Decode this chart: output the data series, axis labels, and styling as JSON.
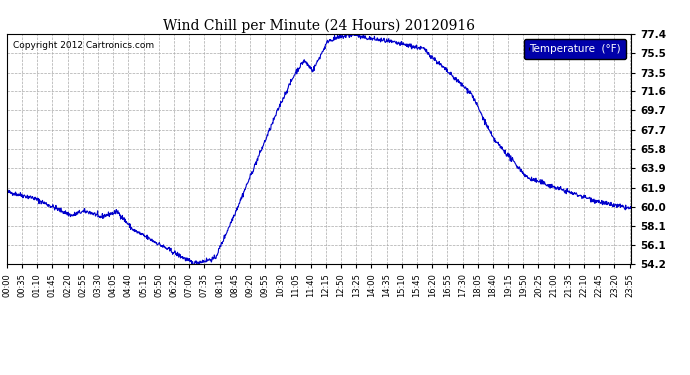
{
  "title": "Wind Chill per Minute (24 Hours) 20120916",
  "copyright": "Copyright 2012 Cartronics.com",
  "legend_label": "Temperature  (°F)",
  "line_color": "#0000CC",
  "background_color": "#FFFFFF",
  "plot_bg_color": "#FFFFFF",
  "legend_bg_color": "#0000AA",
  "legend_text_color": "#FFFFFF",
  "yticks": [
    54.2,
    56.1,
    58.1,
    60.0,
    61.9,
    63.9,
    65.8,
    67.7,
    69.7,
    71.6,
    73.5,
    75.5,
    77.4
  ],
  "ylim": [
    54.2,
    77.4
  ],
  "xtick_labels": [
    "00:00",
    "00:35",
    "01:10",
    "01:45",
    "02:20",
    "02:55",
    "03:30",
    "04:05",
    "04:40",
    "05:15",
    "05:50",
    "06:25",
    "07:00",
    "07:35",
    "08:10",
    "08:45",
    "09:20",
    "09:55",
    "10:30",
    "11:05",
    "11:40",
    "12:15",
    "12:50",
    "13:25",
    "14:00",
    "14:35",
    "15:10",
    "15:45",
    "16:20",
    "16:55",
    "17:30",
    "18:05",
    "18:40",
    "19:15",
    "19:50",
    "20:25",
    "21:00",
    "21:35",
    "22:10",
    "22:45",
    "23:20",
    "23:55"
  ],
  "figsize": [
    6.9,
    3.75
  ],
  "dpi": 100
}
